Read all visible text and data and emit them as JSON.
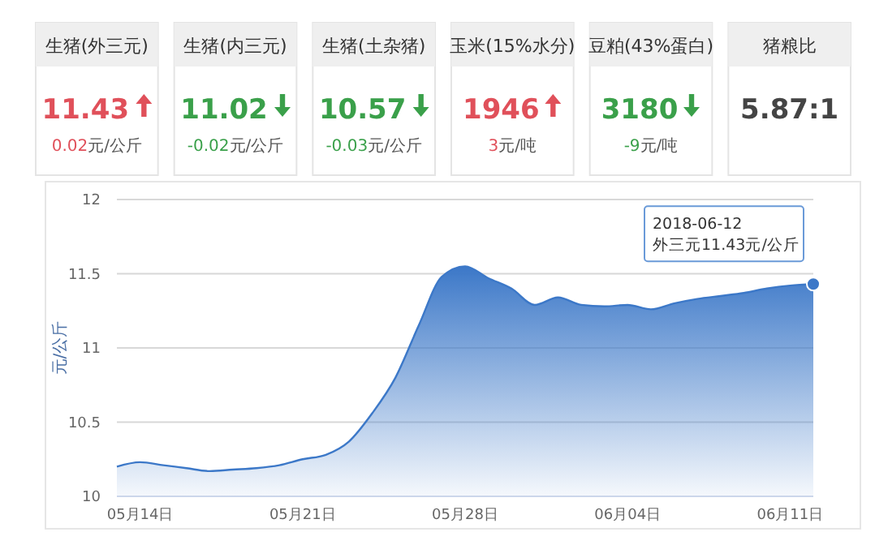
{
  "chart_data": [
    {
      "type": "other",
      "categories": [
        "生猪(外三元)",
        "生猪(内三元)",
        "生猪(土杂猪)",
        "玉米(15%水分)",
        "豆粕(43%蛋白)",
        "猪粮比"
      ],
      "value_labels": [
        "11.43",
        "11.02",
        "10.57",
        "1946",
        "3180",
        "5.87:1"
      ],
      "annotations": [
        "0.02元/公斤",
        "-0.02元/公斤",
        "-0.03元/公斤",
        "3元/吨",
        "-9元/吨"
      ]
    },
    {
      "type": "area",
      "ylabel": "元/公斤",
      "x": [
        "2018-05-13",
        "2018-05-14",
        "2018-05-15",
        "2018-05-16",
        "2018-05-17",
        "2018-05-18",
        "2018-05-19",
        "2018-05-20",
        "2018-05-21",
        "2018-05-22",
        "2018-05-23",
        "2018-05-24",
        "2018-05-25",
        "2018-05-26",
        "2018-05-27",
        "2018-05-28",
        "2018-05-29",
        "2018-05-30",
        "2018-05-31",
        "2018-06-01",
        "2018-06-02",
        "2018-06-03",
        "2018-06-04",
        "2018-06-05",
        "2018-06-06",
        "2018-06-07",
        "2018-06-08",
        "2018-06-09",
        "2018-06-10",
        "2018-06-11",
        "2018-06-12"
      ],
      "series": [
        {
          "color": "#3c78c8",
          "values": [
            10.2,
            10.23,
            10.21,
            10.19,
            10.17,
            10.18,
            10.19,
            10.21,
            10.25,
            10.28,
            10.37,
            10.56,
            10.8,
            11.15,
            11.48,
            11.55,
            11.47,
            11.4,
            11.29,
            11.34,
            11.29,
            11.28,
            11.29,
            11.26,
            11.3,
            11.33,
            11.35,
            11.37,
            11.4,
            11.42,
            11.43
          ]
        }
      ],
      "xlim": [
        "2018-05-13",
        "2018-06-12"
      ],
      "xticks": [
        {
          "value": "2018-05-14",
          "label": "05月14日"
        },
        {
          "value": "2018-05-21",
          "label": "05月21日"
        },
        {
          "value": "2018-05-28",
          "label": "05月28日"
        },
        {
          "value": "2018-06-04",
          "label": "06月04日"
        },
        {
          "value": "2018-06-11",
          "label": "06月11日"
        }
      ],
      "ylim": [
        10,
        12
      ],
      "yticks": [
        10,
        10.5,
        11,
        11.5,
        12
      ],
      "grid": "y",
      "marker": "none",
      "annotations": [
        {
          "text": "2018-06-12\n外三元11.43元/公斤",
          "x": "2018-06-12",
          "y": 11.43
        }
      ]
    }
  ]
}
